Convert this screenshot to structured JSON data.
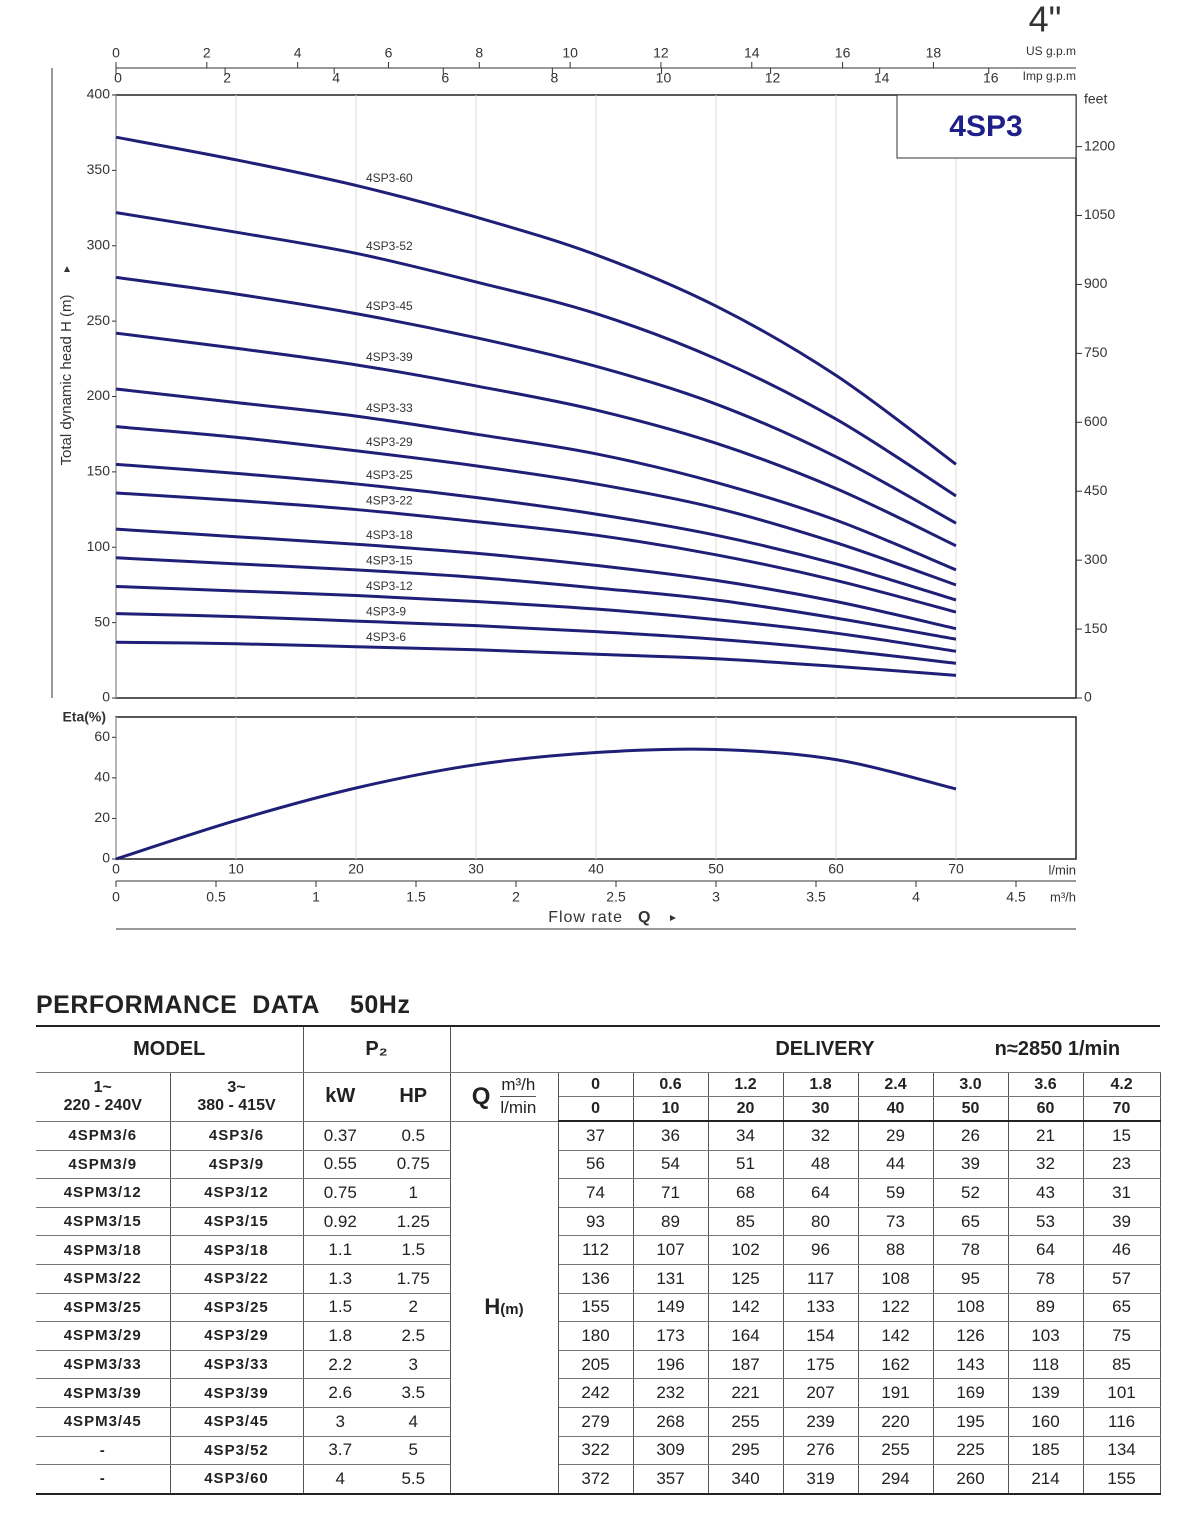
{
  "header": {
    "size": "4\""
  },
  "chart_data": [
    {
      "type": "line",
      "label": "4SP3",
      "ylabel": "Total dynamic head H (m)",
      "x": [
        0,
        10,
        20,
        30,
        40,
        50,
        60,
        70
      ],
      "xlim": [
        0,
        80
      ],
      "xticks": [
        0,
        10,
        20,
        30,
        40,
        50,
        60,
        70
      ],
      "ylim": [
        0,
        400
      ],
      "yticks": [
        0,
        50,
        100,
        150,
        200,
        250,
        300,
        350,
        400
      ],
      "x2label": "US g.p.m",
      "x2lim": [
        0,
        21.14
      ],
      "x2ticks": [
        0,
        2,
        4,
        6,
        8,
        10,
        12,
        14,
        16,
        18
      ],
      "x3label": "Imp g.p.m",
      "x3lim": [
        0,
        17.6
      ],
      "x3ticks": [
        0,
        2,
        4,
        6,
        8,
        10,
        12,
        14,
        16
      ],
      "y2label": "feet",
      "y2lim": [
        0,
        1312.3
      ],
      "y2ticks": [
        0,
        150,
        300,
        450,
        600,
        750,
        900,
        1050,
        1200
      ],
      "grid": "x",
      "series": [
        {
          "name": "4SP3-60",
          "color": "#1f1f78",
          "values": [
            372,
            357,
            340,
            319,
            294,
            260,
            214,
            155
          ]
        },
        {
          "name": "4SP3-52",
          "color": "#1f1f78",
          "values": [
            322,
            309,
            295,
            276,
            255,
            225,
            185,
            134
          ]
        },
        {
          "name": "4SP3-45",
          "color": "#1f1f78",
          "values": [
            279,
            268,
            255,
            239,
            220,
            195,
            160,
            116
          ]
        },
        {
          "name": "4SP3-39",
          "color": "#1f1f78",
          "values": [
            242,
            232,
            221,
            207,
            191,
            169,
            139,
            101
          ]
        },
        {
          "name": "4SP3-33",
          "color": "#1f1f78",
          "values": [
            205,
            196,
            187,
            175,
            162,
            143,
            118,
            85
          ]
        },
        {
          "name": "4SP3-29",
          "color": "#1f1f78",
          "values": [
            180,
            173,
            164,
            154,
            142,
            126,
            103,
            75
          ]
        },
        {
          "name": "4SP3-25",
          "color": "#1f1f78",
          "values": [
            155,
            149,
            142,
            133,
            122,
            108,
            89,
            65
          ]
        },
        {
          "name": "4SP3-22",
          "color": "#1f1f78",
          "values": [
            136,
            131,
            125,
            117,
            108,
            95,
            78,
            57
          ]
        },
        {
          "name": "4SP3-18",
          "color": "#1f1f78",
          "values": [
            112,
            107,
            102,
            96,
            88,
            78,
            64,
            46
          ]
        },
        {
          "name": "4SP3-15",
          "color": "#1f1f78",
          "values": [
            93,
            89,
            85,
            80,
            73,
            65,
            53,
            39
          ]
        },
        {
          "name": "4SP3-12",
          "color": "#1f1f78",
          "values": [
            74,
            71,
            68,
            64,
            59,
            52,
            43,
            31
          ]
        },
        {
          "name": "4SP3-9",
          "color": "#1f1f78",
          "values": [
            56,
            54,
            51,
            48,
            44,
            39,
            32,
            23
          ]
        },
        {
          "name": "4SP3-6",
          "color": "#1f1f78",
          "values": [
            37,
            36,
            34,
            32,
            29,
            26,
            21,
            15
          ]
        }
      ]
    },
    {
      "type": "line",
      "ylabel": "Eta(%)",
      "x": [
        0,
        10,
        20,
        30,
        40,
        50,
        60,
        70
      ],
      "values": [
        0,
        19,
        35,
        46.5,
        52.5,
        54,
        49,
        34.5
      ],
      "color": "#1f1f78",
      "xlim": [
        0,
        80
      ],
      "xticks": [
        0,
        10,
        20,
        30,
        40,
        50,
        60,
        70
      ],
      "xlabel": "l/min",
      "ylim": [
        0,
        70
      ],
      "yticks": [
        0,
        20,
        40,
        60
      ],
      "x2label": "m³/h",
      "x2lim": [
        0,
        4.8
      ],
      "x2ticks": [
        0,
        0.5,
        1,
        1.5,
        2,
        2.5,
        3,
        3.5,
        4,
        4.5
      ],
      "xtitle": "Flow rate",
      "xtitle_symbol": "Q",
      "grid": "x"
    }
  ],
  "table": {
    "title": "PERFORMANCE  DATA",
    "subtitle": "50Hz",
    "header": {
      "model": "MODEL",
      "power": "P₂",
      "delivery": "DELIVERY",
      "speed": "n≈2850 1/min",
      "single_phase": "1~",
      "single_voltage": "220 - 240V",
      "three_phase": "3~",
      "three_voltage": "380 - 415V",
      "kw": "kW",
      "hp": "HP",
      "q": "Q",
      "unit_m3h": "m³/h",
      "unit_lmin": "l/min",
      "head": "H",
      "head_unit": "(m)"
    },
    "flow_m3h": [
      "0",
      "0.6",
      "1.2",
      "1.8",
      "2.4",
      "3.0",
      "3.6",
      "4.2"
    ],
    "flow_lmin": [
      0,
      10,
      20,
      30,
      40,
      50,
      60,
      70
    ],
    "rows": [
      [
        "4SPM3/6",
        "4SP3/6",
        "0.37",
        "0.5",
        37,
        36,
        34,
        32,
        29,
        26,
        21,
        15
      ],
      [
        "4SPM3/9",
        "4SP3/9",
        "0.55",
        "0.75",
        56,
        54,
        51,
        48,
        44,
        39,
        32,
        23
      ],
      [
        "4SPM3/12",
        "4SP3/12",
        "0.75",
        "1",
        74,
        71,
        68,
        64,
        59,
        52,
        43,
        31
      ],
      [
        "4SPM3/15",
        "4SP3/15",
        "0.92",
        "1.25",
        93,
        89,
        85,
        80,
        73,
        65,
        53,
        39
      ],
      [
        "4SPM3/18",
        "4SP3/18",
        "1.1",
        "1.5",
        112,
        107,
        102,
        96,
        88,
        78,
        64,
        46
      ],
      [
        "4SPM3/22",
        "4SP3/22",
        "1.3",
        "1.75",
        136,
        131,
        125,
        117,
        108,
        95,
        78,
        57
      ],
      [
        "4SPM3/25",
        "4SP3/25",
        "1.5",
        "2",
        155,
        149,
        142,
        133,
        122,
        108,
        89,
        65
      ],
      [
        "4SPM3/29",
        "4SP3/29",
        "1.8",
        "2.5",
        180,
        173,
        164,
        154,
        142,
        126,
        103,
        75
      ],
      [
        "4SPM3/33",
        "4SP3/33",
        "2.2",
        "3",
        205,
        196,
        187,
        175,
        162,
        143,
        118,
        85
      ],
      [
        "4SPM3/39",
        "4SP3/39",
        "2.6",
        "3.5",
        242,
        232,
        221,
        207,
        191,
        169,
        139,
        101
      ],
      [
        "4SPM3/45",
        "4SP3/45",
        "3",
        "4",
        279,
        268,
        255,
        239,
        220,
        195,
        160,
        116
      ],
      [
        "-",
        "4SP3/52",
        "3.7",
        "5",
        322,
        309,
        295,
        276,
        255,
        225,
        185,
        134
      ],
      [
        "-",
        "4SP3/60",
        "4",
        "5.5",
        372,
        357,
        340,
        319,
        294,
        260,
        214,
        155
      ]
    ]
  }
}
